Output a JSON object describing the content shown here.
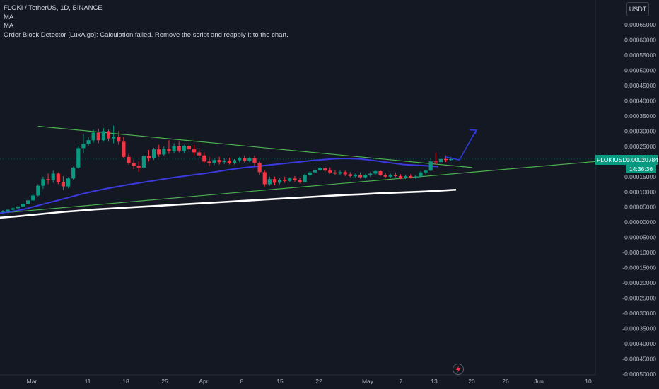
{
  "legend": {
    "symbol_line": "FLOKI / TetherUS, 1D, BINANCE",
    "indicator1": "MA",
    "indicator2": "MA",
    "error_line": "Order Block Detector [LuxAlgo]: Calculation failed. Remove the script and reapply it to the chart."
  },
  "currency_button": "USDT",
  "price_tag": {
    "symbol": "FLOKIUSDT",
    "price": "0.00020784",
    "countdown": "14:36:36"
  },
  "colors": {
    "background": "#141823",
    "up": "#089981",
    "down": "#f23645",
    "trendline": "#4caf50",
    "ma_blue": "#3a3adf",
    "ma_white": "#ffffff",
    "arrow": "#2f3bd9"
  },
  "icons": {
    "bolt": "lightning-icon"
  },
  "chart_data": {
    "type": "candlestick",
    "title": "FLOKI / TetherUS, 1D, BINANCE",
    "y_ticks": [
      "0.00065000",
      "0.00060000",
      "0.00055000",
      "0.00050000",
      "0.00045000",
      "0.00040000",
      "0.00035000",
      "0.00030000",
      "0.00025000",
      "0.00020000",
      "0.00015000",
      "0.00010000",
      "0.00005000",
      "0.00000000",
      "-0.00005000",
      "-0.00010000",
      "-0.00015000",
      "-0.00020000",
      "-0.00025000",
      "-0.00030000",
      "-0.00035000",
      "-0.00040000",
      "-0.00045000",
      "-0.00050000"
    ],
    "y_tick_values": [
      0.00065,
      0.0006,
      0.00055,
      0.0005,
      0.00045,
      0.0004,
      0.00035,
      0.0003,
      0.00025,
      0.0002,
      0.00015,
      0.0001,
      5e-05,
      0,
      -5e-05,
      -0.0001,
      -0.00015,
      -0.0002,
      -0.00025,
      -0.0003,
      -0.00035,
      -0.0004,
      -0.00045,
      -0.0005
    ],
    "x_ticks": [
      "Mar",
      "11",
      "18",
      "25",
      "Apr",
      "8",
      "15",
      "22",
      "May",
      "7",
      "13",
      "20",
      "26",
      "Jun",
      "10"
    ],
    "ylim": [
      -0.0005,
      0.00065
    ],
    "candles": [
      {
        "o": 3.35e-05,
        "h": 4e-05,
        "c": 3.5e-05,
        "l": 3.15e-05
      },
      {
        "o": 3.45e-05,
        "h": 4.3e-05,
        "c": 4.1e-05,
        "l": 3.25e-05
      },
      {
        "o": 4.1e-05,
        "h": 5e-05,
        "c": 4.6e-05,
        "l": 3.8e-05
      },
      {
        "o": 4.6e-05,
        "h": 5.6e-05,
        "c": 5.2e-05,
        "l": 4.3e-05
      },
      {
        "o": 5.2e-05,
        "h": 6.5e-05,
        "c": 6.1e-05,
        "l": 4.9e-05
      },
      {
        "o": 6.1e-05,
        "h": 7.6e-05,
        "c": 7.2e-05,
        "l": 5.8e-05
      },
      {
        "o": 7.2e-05,
        "h": 9.3e-05,
        "c": 8.8e-05,
        "l": 6.9e-05
      },
      {
        "o": 8.8e-05,
        "h": 0.000125,
        "c": 0.00012,
        "l": 8.5e-05
      },
      {
        "o": 0.00012,
        "h": 0.00015,
        "c": 0.000142,
        "l": 0.00011
      },
      {
        "o": 0.000142,
        "h": 0.00016,
        "c": 0.000138,
        "l": 0.000125
      },
      {
        "o": 0.000138,
        "h": 0.00017,
        "c": 0.00016,
        "l": 0.00013
      },
      {
        "o": 0.00016,
        "h": 0.000164,
        "c": 0.000133,
        "l": 0.000125
      },
      {
        "o": 0.000133,
        "h": 0.000152,
        "c": 0.000118,
        "l": 0.000106
      },
      {
        "o": 0.000118,
        "h": 0.000148,
        "c": 0.000144,
        "l": 0.000112
      },
      {
        "o": 0.000144,
        "h": 0.000183,
        "c": 0.00018,
        "l": 0.00014
      },
      {
        "o": 0.00018,
        "h": 0.000252,
        "c": 0.000244,
        "l": 0.000176
      },
      {
        "o": 0.000244,
        "h": 0.00029,
        "c": 0.000258,
        "l": 0.000228
      },
      {
        "o": 0.000258,
        "h": 0.00028,
        "c": 0.00027,
        "l": 0.000252
      },
      {
        "o": 0.00027,
        "h": 0.000305,
        "c": 0.000295,
        "l": 0.000262
      },
      {
        "o": 0.000295,
        "h": 0.000308,
        "c": 0.00027,
        "l": 0.00026
      },
      {
        "o": 0.00027,
        "h": 0.00031,
        "c": 0.0003,
        "l": 0.000265
      },
      {
        "o": 0.0003,
        "h": 0.000305,
        "c": 0.000276,
        "l": 0.000265
      },
      {
        "o": 0.000276,
        "h": 0.000318,
        "c": 0.000282,
        "l": 0.00026
      },
      {
        "o": 0.000282,
        "h": 0.0003,
        "c": 0.000265,
        "l": 0.000255
      },
      {
        "o": 0.000265,
        "h": 0.000282,
        "c": 0.000215,
        "l": 0.00021
      },
      {
        "o": 0.000215,
        "h": 0.000225,
        "c": 0.000195,
        "l": 0.00019
      },
      {
        "o": 0.000195,
        "h": 0.000205,
        "c": 0.000185,
        "l": 0.000175
      },
      {
        "o": 0.000185,
        "h": 0.0002,
        "c": 0.00018,
        "l": 0.000165
      },
      {
        "o": 0.00018,
        "h": 0.000223,
        "c": 0.000218,
        "l": 0.000175
      },
      {
        "o": 0.000218,
        "h": 0.000238,
        "c": 0.00021,
        "l": 0.0002
      },
      {
        "o": 0.00021,
        "h": 0.000245,
        "c": 0.00024,
        "l": 0.000205
      },
      {
        "o": 0.00024,
        "h": 0.000255,
        "c": 0.000223,
        "l": 0.000215
      },
      {
        "o": 0.000223,
        "h": 0.00025,
        "c": 0.000242,
        "l": 0.000218
      },
      {
        "o": 0.000242,
        "h": 0.00027,
        "c": 0.000234,
        "l": 0.000225
      },
      {
        "o": 0.000234,
        "h": 0.00026,
        "c": 0.00025,
        "l": 0.000228
      },
      {
        "o": 0.00025,
        "h": 0.000265,
        "c": 0.000236,
        "l": 0.00023
      },
      {
        "o": 0.000236,
        "h": 0.000255,
        "c": 0.000252,
        "l": 0.000228
      },
      {
        "o": 0.000252,
        "h": 0.00026,
        "c": 0.00024,
        "l": 0.00023
      },
      {
        "o": 0.00024,
        "h": 0.000255,
        "c": 0.00023,
        "l": 0.00022
      },
      {
        "o": 0.00023,
        "h": 0.000245,
        "c": 0.00022,
        "l": 0.00021
      },
      {
        "o": 0.00022,
        "h": 0.00023,
        "c": 0.0002,
        "l": 0.000195
      },
      {
        "o": 0.0002,
        "h": 0.000215,
        "c": 0.000195,
        "l": 0.000185
      },
      {
        "o": 0.000195,
        "h": 0.00021,
        "c": 0.000205,
        "l": 0.000188
      },
      {
        "o": 0.000205,
        "h": 0.000215,
        "c": 0.000198,
        "l": 0.00019
      },
      {
        "o": 0.000198,
        "h": 0.00021,
        "c": 0.000202,
        "l": 0.000192
      },
      {
        "o": 0.000202,
        "h": 0.000212,
        "c": 0.000196,
        "l": 0.00019
      },
      {
        "o": 0.000196,
        "h": 0.000208,
        "c": 0.000204,
        "l": 0.00019
      },
      {
        "o": 0.000204,
        "h": 0.000215,
        "c": 0.00021,
        "l": 0.000198
      },
      {
        "o": 0.00021,
        "h": 0.00022,
        "c": 0.000202,
        "l": 0.000196
      },
      {
        "o": 0.000202,
        "h": 0.000215,
        "c": 0.00021,
        "l": 0.000198
      },
      {
        "o": 0.00021,
        "h": 0.00022,
        "c": 0.000195,
        "l": 0.000185
      },
      {
        "o": 0.000195,
        "h": 0.0002,
        "c": 0.000165,
        "l": 0.000155
      },
      {
        "o": 0.000165,
        "h": 0.00017,
        "c": 0.000125,
        "l": 0.000118
      },
      {
        "o": 0.000125,
        "h": 0.00015,
        "c": 0.000142,
        "l": 0.00012
      },
      {
        "o": 0.000142,
        "h": 0.00015,
        "c": 0.00013,
        "l": 0.000122
      },
      {
        "o": 0.00013,
        "h": 0.000145,
        "c": 0.00014,
        "l": 0.000125
      },
      {
        "o": 0.00014,
        "h": 0.00015,
        "c": 0.000136,
        "l": 0.00013
      },
      {
        "o": 0.000136,
        "h": 0.000148,
        "c": 0.000144,
        "l": 0.000132
      },
      {
        "o": 0.000144,
        "h": 0.000152,
        "c": 0.000138,
        "l": 0.000133
      },
      {
        "o": 0.000138,
        "h": 0.000145,
        "c": 0.000132,
        "l": 0.000128
      },
      {
        "o": 0.000132,
        "h": 0.00016,
        "c": 0.000156,
        "l": 0.00013
      },
      {
        "o": 0.000156,
        "h": 0.000168,
        "c": 0.000164,
        "l": 0.00015
      },
      {
        "o": 0.000164,
        "h": 0.000178,
        "c": 0.000172,
        "l": 0.00016
      },
      {
        "o": 0.000172,
        "h": 0.000182,
        "c": 0.000178,
        "l": 0.000168
      },
      {
        "o": 0.000178,
        "h": 0.000185,
        "c": 0.00017,
        "l": 0.000165
      },
      {
        "o": 0.00017,
        "h": 0.00018,
        "c": 0.000164,
        "l": 0.00016
      },
      {
        "o": 0.000164,
        "h": 0.000172,
        "c": 0.00016,
        "l": 0.000156
      },
      {
        "o": 0.00016,
        "h": 0.00017,
        "c": 0.000165,
        "l": 0.000154
      },
      {
        "o": 0.000165,
        "h": 0.00017,
        "c": 0.000158,
        "l": 0.000152
      },
      {
        "o": 0.000158,
        "h": 0.000165,
        "c": 0.000152,
        "l": 0.000148
      },
      {
        "o": 0.000152,
        "h": 0.00016,
        "c": 0.000156,
        "l": 0.000148
      },
      {
        "o": 0.000156,
        "h": 0.000164,
        "c": 0.000148,
        "l": 0.000144
      },
      {
        "o": 0.000148,
        "h": 0.000158,
        "c": 0.000154,
        "l": 0.000144
      },
      {
        "o": 0.000154,
        "h": 0.000165,
        "c": 0.00016,
        "l": 0.00015
      },
      {
        "o": 0.00016,
        "h": 0.000172,
        "c": 0.000168,
        "l": 0.000156
      },
      {
        "o": 0.000168,
        "h": 0.000172,
        "c": 0.000156,
        "l": 0.000152
      },
      {
        "o": 0.000156,
        "h": 0.000162,
        "c": 0.00015,
        "l": 0.000146
      },
      {
        "o": 0.00015,
        "h": 0.00016,
        "c": 0.000156,
        "l": 0.000146
      },
      {
        "o": 0.000156,
        "h": 0.000164,
        "c": 0.000152,
        "l": 0.000148
      },
      {
        "o": 0.000152,
        "h": 0.000158,
        "c": 0.000146,
        "l": 0.000142
      },
      {
        "o": 0.000146,
        "h": 0.000156,
        "c": 0.000152,
        "l": 0.000142
      },
      {
        "o": 0.000152,
        "h": 0.000158,
        "c": 0.000148,
        "l": 0.000144
      },
      {
        "o": 0.000148,
        "h": 0.000155,
        "c": 0.000151,
        "l": 0.000143
      },
      {
        "o": 0.000151,
        "h": 0.000168,
        "c": 0.000164,
        "l": 0.000148
      },
      {
        "o": 0.000164,
        "h": 0.000172,
        "c": 0.00017,
        "l": 0.000158
      },
      {
        "o": 0.00017,
        "h": 0.00021,
        "c": 0.0002,
        "l": 0.000168
      },
      {
        "o": 0.0002,
        "h": 0.00023,
        "c": 0.000198,
        "l": 0.00019
      },
      {
        "o": 0.000198,
        "h": 0.00022,
        "c": 0.000208,
        "l": 0.000195
      },
      {
        "o": 0.000208,
        "h": 0.00022,
        "c": 0.000205,
        "l": 0.000198
      },
      {
        "o": 0.000205,
        "h": 0.000215,
        "c": 0.0002078,
        "l": 0.000202
      }
    ],
    "trendlines": [
      {
        "name": "upper",
        "points": [
          [
            0.000315,
            "c13"
          ],
          [
            0.000185,
            "c92"
          ]
        ]
      },
      {
        "name": "lower",
        "points": [
          [
            3.2e-05,
            "c0"
          ],
          [
            0.0002,
            "x842"
          ]
        ]
      }
    ],
    "ma_blue": [
      3e-05,
      3.5e-05,
      4.2e-05,
      5.2e-05,
      6.2e-05,
      7.2e-05,
      8.2e-05,
      9.2e-05,
      0.000101,
      0.000109,
      0.000116,
      0.000123,
      0.000129,
      0.000135,
      0.000141,
      0.000147,
      0.000152,
      0.000157,
      0.000162,
      0.000168,
      0.000174,
      0.000179,
      0.000183,
      0.000187,
      0.000191,
      0.000195,
      0.000199,
      0.000203,
      0.000206,
      0.000209,
      0.00021,
      0.000209,
      0.000205,
      0.0002,
      0.000195,
      0.00019,
      0.000188,
      0.000186,
      0.000183
    ],
    "ma_white": [
      1.5e-05,
      1.9e-05,
      2.4e-05,
      2.9e-05,
      3.4e-05,
      3.8e-05,
      4.2e-05,
      4.5e-05,
      4.8e-05,
      5.1e-05,
      5.4e-05,
      5.7e-05,
      6e-05,
      6.3e-05,
      6.6e-05,
      6.9e-05,
      7.2e-05,
      7.5e-05,
      7.8e-05,
      8.1e-05,
      8.4e-05,
      8.7e-05,
      9e-05,
      9.2e-05,
      9.5e-05,
      9.7e-05,
      9.9e-05,
      0.000101,
      0.000104,
      0.000107
    ]
  }
}
